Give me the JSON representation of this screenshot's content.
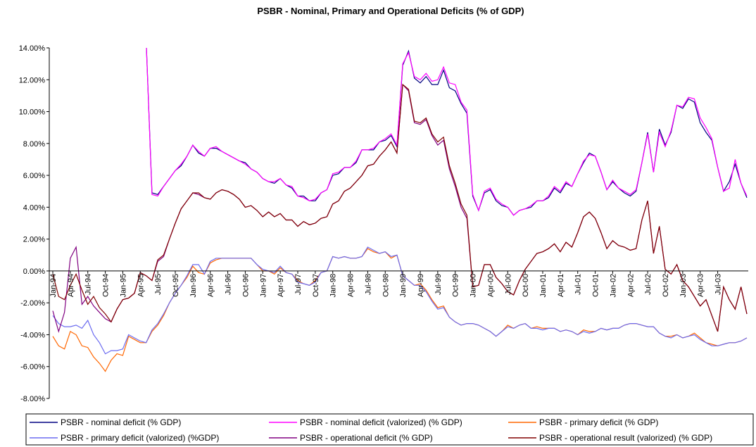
{
  "chart_data": {
    "type": "line",
    "title": "PSBR -  Nominal, Primary and Operational Deficits (% of GDP)",
    "categories": [
      "Jan-94",
      null,
      null,
      "Apr-94",
      null,
      null,
      "Jul-94",
      null,
      null,
      "Oct-94",
      null,
      null,
      "Jan-95",
      null,
      null,
      "Apr-95",
      null,
      null,
      "Jul-95",
      null,
      null,
      "Oct-95",
      null,
      null,
      "Jan-96",
      null,
      null,
      "Apr-96",
      null,
      null,
      "Jul-96",
      null,
      null,
      "Oct-96",
      null,
      null,
      "Jan-97",
      null,
      null,
      "Apr-97",
      null,
      null,
      "Jul-97",
      null,
      null,
      "Oct-97",
      null,
      null,
      "Jan-98",
      null,
      null,
      "Apr-98",
      null,
      null,
      "Jul-98",
      null,
      null,
      "Oct-98",
      null,
      null,
      "Jan-99",
      null,
      null,
      "Apr-99",
      null,
      null,
      "Jul-99",
      null,
      null,
      "Oct-99",
      null,
      null,
      "Jan-00",
      null,
      null,
      "Apr-00",
      null,
      null,
      "Jul-00",
      null,
      null,
      "Oct-00",
      null,
      null,
      "Jan-01",
      null,
      null,
      "Apr-01",
      null,
      null,
      "Jul-01",
      null,
      null,
      "Oct-01",
      null,
      null,
      "Jan-02",
      null,
      null,
      "Apr-02",
      null,
      null,
      "Jul-02",
      null,
      null,
      "Oct-02",
      null,
      null,
      "Jan-03",
      null,
      null,
      "Apr-03",
      null,
      null,
      "Jul-03",
      null,
      null,
      null,
      null,
      null
    ],
    "ylim": [
      -8,
      14
    ],
    "yticks": [
      {
        "value": -8,
        "label": "-8.00%"
      },
      {
        "value": -6,
        "label": "-6.00%"
      },
      {
        "value": -4,
        "label": "-4.00%"
      },
      {
        "value": -2,
        "label": "-2.00%"
      },
      {
        "value": 0,
        "label": "0.00%"
      },
      {
        "value": 2,
        "label": "2.00%"
      },
      {
        "value": 4,
        "label": "4.00%"
      },
      {
        "value": 6,
        "label": "6.00%"
      },
      {
        "value": 8,
        "label": "8.00%"
      },
      {
        "value": 10,
        "label": "10.00%"
      },
      {
        "value": 12,
        "label": "12.00%"
      },
      {
        "value": 14,
        "label": "14.00%"
      }
    ],
    "grid": false,
    "series": [
      {
        "name": "PSBR - nominal deficit (% GDP)",
        "color": "#000080",
        "values": [
          null,
          null,
          null,
          null,
          null,
          null,
          null,
          null,
          null,
          null,
          null,
          null,
          null,
          null,
          null,
          null,
          14.5,
          4.9,
          4.8,
          5.3,
          5.8,
          6.3,
          6.6,
          7.2,
          7.9,
          7.4,
          7.2,
          7.7,
          7.7,
          7.5,
          7.3,
          7.1,
          6.9,
          6.8,
          6.4,
          6.2,
          5.8,
          5.6,
          5.5,
          5.8,
          5.4,
          5.2,
          4.7,
          4.7,
          4.4,
          4.4,
          4.9,
          5.1,
          6.0,
          6.1,
          6.5,
          6.5,
          6.8,
          7.6,
          7.6,
          7.6,
          8.1,
          8.2,
          8.5,
          7.8,
          12.9,
          13.8,
          12.1,
          11.8,
          12.2,
          11.7,
          11.7,
          12.6,
          11.5,
          11.3,
          10.5,
          9.9,
          4.7,
          3.8,
          4.9,
          5.1,
          4.4,
          4.1,
          4.0,
          3.5,
          3.8,
          3.9,
          4.0,
          4.4,
          4.4,
          4.6,
          5.2,
          4.9,
          5.5,
          5.3,
          6.1,
          6.8,
          7.4,
          7.2,
          6.2,
          5.1,
          5.6,
          5.2,
          4.9,
          4.7,
          5.0,
          6.8,
          8.7,
          6.2,
          8.9,
          7.9,
          8.7,
          10.4,
          10.2,
          10.8,
          10.6,
          9.3,
          8.7,
          8.2,
          6.5,
          5.0,
          5.6,
          6.7,
          5.5,
          4.6
        ]
      },
      {
        "name": "PSBR - nominal deficit (valorized) (% GDP)",
        "color": "#ff00ff",
        "values": [
          null,
          null,
          null,
          null,
          null,
          null,
          null,
          null,
          null,
          null,
          null,
          null,
          null,
          null,
          null,
          null,
          14.5,
          4.8,
          4.7,
          5.3,
          5.8,
          6.3,
          6.7,
          7.2,
          7.9,
          7.5,
          7.2,
          7.7,
          7.8,
          7.5,
          7.3,
          7.1,
          6.9,
          6.7,
          6.4,
          6.2,
          5.8,
          5.6,
          5.6,
          5.8,
          5.4,
          5.3,
          4.7,
          4.6,
          4.4,
          4.5,
          4.9,
          5.1,
          6.1,
          6.2,
          6.5,
          6.5,
          6.9,
          7.6,
          7.6,
          7.7,
          8.1,
          8.3,
          8.6,
          7.9,
          13.0,
          13.7,
          12.2,
          12.0,
          12.4,
          11.9,
          12.0,
          12.8,
          11.8,
          11.7,
          10.6,
          10.1,
          4.8,
          3.8,
          5.0,
          5.2,
          4.5,
          4.2,
          4.0,
          3.5,
          3.8,
          3.9,
          4.1,
          4.4,
          4.4,
          4.7,
          5.3,
          5.0,
          5.6,
          5.3,
          6.1,
          6.9,
          7.3,
          7.2,
          6.2,
          5.1,
          5.7,
          5.2,
          5.0,
          4.8,
          5.1,
          6.8,
          8.6,
          6.2,
          8.7,
          7.8,
          8.8,
          10.4,
          10.3,
          10.9,
          10.8,
          9.6,
          9.0,
          8.3,
          6.5,
          5.0,
          5.2,
          7.0,
          5.5,
          4.7
        ]
      },
      {
        "name": "PSBR - primary deficit (% GDP)",
        "color": "#ff6600",
        "values": [
          -4.1,
          -4.7,
          -4.9,
          -3.8,
          -4.0,
          -4.7,
          -4.8,
          -5.4,
          -5.8,
          -6.3,
          -5.6,
          -5.2,
          -5.3,
          -4.1,
          -4.3,
          -4.5,
          -4.5,
          -3.8,
          -3.4,
          -2.8,
          -2.0,
          -1.4,
          -0.9,
          -0.4,
          0.3,
          -0.1,
          -0.2,
          0.5,
          0.7,
          0.8,
          0.8,
          0.8,
          0.8,
          0.8,
          0.8,
          0.4,
          0.0,
          0.0,
          -0.2,
          0.2,
          -0.1,
          -0.2,
          -0.6,
          -0.8,
          -0.9,
          -0.6,
          -0.1,
          0.0,
          0.9,
          0.8,
          0.9,
          0.8,
          0.8,
          0.9,
          1.4,
          1.2,
          1.1,
          1.2,
          0.8,
          1.0,
          -0.3,
          -0.6,
          -0.9,
          -0.8,
          -1.2,
          -1.8,
          -2.3,
          -2.2,
          -2.9,
          -3.2,
          -3.4,
          -3.3,
          -3.3,
          -3.4,
          -3.6,
          -3.8,
          -4.1,
          -3.8,
          -3.4,
          -3.6,
          -3.4,
          -3.3,
          -3.6,
          -3.5,
          -3.6,
          -3.6,
          -3.6,
          -3.8,
          -3.7,
          -3.8,
          -4.0,
          -3.7,
          -3.8,
          -3.8,
          -3.6,
          -3.7,
          -3.6,
          -3.6,
          -3.4,
          -3.3,
          -3.3,
          -3.4,
          -3.5,
          -3.5,
          -3.9,
          -4.1,
          -4.1,
          -4.0,
          -4.2,
          -4.1,
          -3.9,
          -4.2,
          -4.5,
          -4.6,
          -4.7,
          -4.6,
          -4.5,
          -4.5,
          -4.4,
          -4.2
        ]
      },
      {
        "name": "PSBR - primary deficit (valorized) (%GDP)",
        "color": "#6b6bf0",
        "values": [
          -2.8,
          -3.3,
          -3.5,
          -3.5,
          -3.4,
          -3.6,
          -3.1,
          -4.0,
          -4.5,
          -5.2,
          -5.0,
          -5.0,
          -4.9,
          -4.0,
          -4.2,
          -4.4,
          -4.5,
          -3.7,
          -3.3,
          -2.7,
          -2.0,
          -1.4,
          -0.9,
          -0.3,
          0.4,
          0.4,
          -0.2,
          0.6,
          0.8,
          0.8,
          0.8,
          0.8,
          0.8,
          0.8,
          0.8,
          0.4,
          0.1,
          0.0,
          -0.1,
          0.3,
          -0.1,
          -0.2,
          -0.7,
          -0.8,
          -0.9,
          -0.7,
          -0.1,
          0.0,
          0.9,
          0.8,
          0.9,
          0.8,
          0.8,
          0.9,
          1.5,
          1.3,
          1.1,
          1.2,
          0.9,
          1.0,
          -0.3,
          -0.6,
          -0.9,
          -0.9,
          -1.3,
          -1.9,
          -2.4,
          -2.3,
          -2.9,
          -3.2,
          -3.4,
          -3.3,
          -3.3,
          -3.4,
          -3.6,
          -3.8,
          -4.1,
          -3.8,
          -3.5,
          -3.6,
          -3.4,
          -3.3,
          -3.6,
          -3.6,
          -3.7,
          -3.6,
          -3.6,
          -3.8,
          -3.7,
          -3.8,
          -4.0,
          -3.8,
          -3.9,
          -3.8,
          -3.6,
          -3.7,
          -3.6,
          -3.6,
          -3.4,
          -3.3,
          -3.3,
          -3.4,
          -3.5,
          -3.5,
          -3.9,
          -4.1,
          -4.2,
          -4.0,
          -4.2,
          -4.1,
          -4.0,
          -4.3,
          -4.5,
          -4.7,
          -4.7,
          -4.6,
          -4.5,
          -4.5,
          -4.4,
          -4.2
        ]
      },
      {
        "name": "PSBR - operational deficit (% GDP)",
        "color": "#800080",
        "values": [
          -2.5,
          -3.8,
          -2.6,
          0.8,
          1.5,
          -2.1,
          -1.6,
          -2.2,
          -2.6,
          -3.0,
          -3.2,
          -2.4,
          -1.8,
          -1.7,
          -1.4,
          -0.1,
          -0.3,
          -0.6,
          0.6,
          0.9,
          2.0,
          3.0,
          3.9,
          4.4,
          4.9,
          4.8,
          4.6,
          4.5,
          4.9,
          5.1,
          5.0,
          4.8,
          4.5,
          4.0,
          4.1,
          3.8,
          3.4,
          3.7,
          3.4,
          3.6,
          3.2,
          3.2,
          2.8,
          3.1,
          2.9,
          3.0,
          3.3,
          3.4,
          4.2,
          4.4,
          5.0,
          5.2,
          5.6,
          6.0,
          6.6,
          6.7,
          7.2,
          7.6,
          8.1,
          7.4,
          11.7,
          11.3,
          9.3,
          9.2,
          9.5,
          8.5,
          7.9,
          8.2,
          6.4,
          5.3,
          4.0,
          3.3,
          -1.0,
          -0.9,
          0.4,
          0.4,
          -0.4,
          -0.8,
          -1.3,
          -1.5,
          -0.6,
          0.1,
          0.6,
          1.1,
          1.2,
          1.4,
          1.7,
          1.2,
          1.8,
          1.5,
          2.4,
          3.4,
          3.7,
          3.3,
          2.4,
          1.4,
          1.9,
          1.6,
          1.5,
          1.3,
          1.4,
          3.2,
          4.4,
          1.1,
          2.8,
          0.1,
          -0.2,
          0.4,
          -0.6,
          -1.0,
          -1.6,
          -2.2,
          -1.8,
          -2.8,
          -3.8,
          -1.0,
          -1.8,
          -2.4,
          -1.0,
          -2.7
        ]
      },
      {
        "name": "PSBR - operational result (valorized) (% GDP)",
        "color": "#800000",
        "values": [
          -0.2,
          -1.6,
          -1.8,
          -0.9,
          -0.2,
          -1.2,
          -2.1,
          -1.6,
          -2.3,
          -2.7,
          -3.2,
          -2.4,
          -1.8,
          -1.7,
          -1.4,
          -0.1,
          -0.3,
          -0.6,
          0.7,
          1.0,
          2.0,
          3.0,
          3.9,
          4.4,
          4.9,
          4.9,
          4.6,
          4.5,
          4.9,
          5.1,
          5.0,
          4.8,
          4.5,
          4.0,
          4.1,
          3.8,
          3.4,
          3.7,
          3.4,
          3.6,
          3.2,
          3.2,
          2.8,
          3.1,
          2.9,
          3.0,
          3.3,
          3.4,
          4.2,
          4.4,
          5.0,
          5.2,
          5.6,
          6.0,
          6.6,
          6.7,
          7.2,
          7.6,
          8.1,
          7.4,
          11.7,
          11.4,
          9.4,
          9.3,
          9.6,
          8.6,
          8.1,
          8.4,
          6.6,
          5.5,
          4.2,
          3.5,
          -1.0,
          -0.9,
          0.4,
          0.4,
          -0.4,
          -0.8,
          -1.3,
          -1.5,
          -0.6,
          0.1,
          0.6,
          1.1,
          1.2,
          1.4,
          1.7,
          1.2,
          1.8,
          1.5,
          2.4,
          3.4,
          3.7,
          3.3,
          2.4,
          1.4,
          1.9,
          1.6,
          1.5,
          1.3,
          1.4,
          3.2,
          4.4,
          1.1,
          2.8,
          0.1,
          -0.2,
          0.4,
          -0.6,
          -1.0,
          -1.6,
          -2.2,
          -1.8,
          -2.8,
          -3.8,
          -1.0,
          -1.8,
          -2.4,
          -1.0,
          -2.7
        ]
      }
    ]
  }
}
